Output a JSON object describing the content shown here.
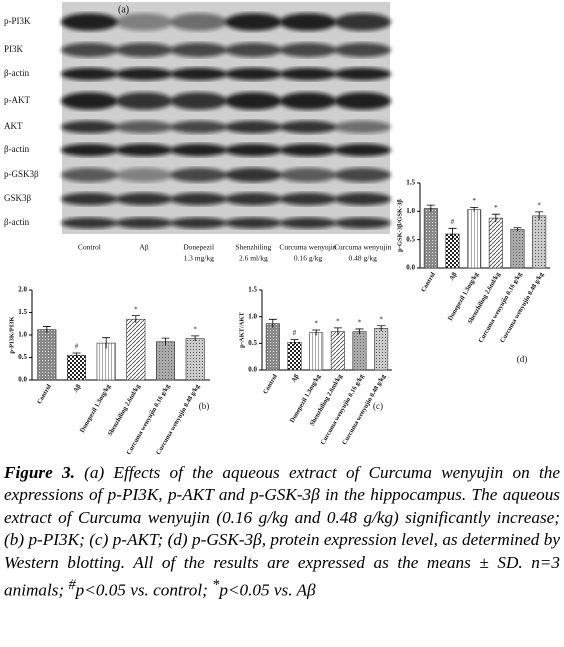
{
  "blot": {
    "panel": "(a)",
    "rows": [
      "p-PI3K",
      "PI3K",
      "β-actin",
      "p-AKT",
      "AKT",
      "β-actin",
      "p-GSK3β",
      "GSK3β",
      "β-actin"
    ],
    "columns": [
      {
        "name": "Control"
      },
      {
        "name": "Aβ"
      },
      {
        "name": "Donepezil",
        "dose": "1.3 mg/kg"
      },
      {
        "name": "Shenzhiling",
        "dose": "2.6 ml/kg"
      },
      {
        "name": "Curcuma wenyujin",
        "dose": "0.16 g/kg"
      },
      {
        "name": "Curcuma wenyujin",
        "dose": "0.48 g/kg"
      }
    ]
  },
  "chart_data": [
    {
      "type": "bar",
      "panel": "(b)",
      "y_label": "p-PI3K/PI3K",
      "categories": [
        "Control",
        "Aβ",
        "Donepezil 1.3mg/kg",
        "Shenzhiling 2.6ml/kg",
        "Curcuma wenyujin 0.16 g/kg",
        "Curcuma wenyujin 0.48 g/kg"
      ],
      "values": [
        1.12,
        0.55,
        0.82,
        1.35,
        0.85,
        0.92
      ],
      "errors": [
        0.07,
        0.05,
        0.12,
        0.08,
        0.08,
        0.06
      ],
      "significance": [
        null,
        "#",
        null,
        "*",
        null,
        "*"
      ],
      "ylim": [
        0,
        2
      ],
      "yticks": [
        {
          "value": 0,
          "label": "0.0"
        },
        0.5,
        {
          "value": 1,
          "label": "1.0"
        },
        1.5,
        {
          "value": 2,
          "label": "2.0"
        }
      ]
    },
    {
      "type": "bar",
      "panel": "(c)",
      "y_label": "p-AKT/AKT",
      "categories": [
        "Control",
        "Aβ",
        "Donepezil 1.3mg/kg",
        "Shenzhiling 2.6ml/kg",
        "Curcuma wenyujin 0.16 g/kg",
        "Curcuma wenyujin 0.48 g/kg"
      ],
      "values": [
        0.87,
        0.52,
        0.7,
        0.72,
        0.72,
        0.78
      ],
      "errors": [
        0.08,
        0.05,
        0.05,
        0.07,
        0.05,
        0.05
      ],
      "significance": [
        null,
        "#",
        "*",
        "*",
        "*",
        "*"
      ],
      "ylim": [
        0,
        1.5
      ],
      "yticks": [
        {
          "value": 0,
          "label": "0.0"
        },
        0.5,
        {
          "value": 1,
          "label": "1.0"
        },
        1.5
      ]
    },
    {
      "type": "bar",
      "panel": "(d)",
      "y_label": "p-GSK-3β/GSK-3β",
      "categories": [
        "Control",
        "Aβ",
        "Donepezil 1.3mg/kg",
        "Shenzhiling 2.6ml/kg",
        "Curcuma wenyujin 0.16 g/kg",
        "Curcuma wenyujin 0.48 g/kg"
      ],
      "values": [
        1.05,
        0.6,
        1.03,
        0.88,
        0.68,
        0.92
      ],
      "errors": [
        0.06,
        0.1,
        0.04,
        0.07,
        0.03,
        0.07
      ],
      "significance": [
        null,
        "#",
        "*",
        "*",
        null,
        "*"
      ],
      "ylim": [
        0,
        1.5
      ],
      "yticks": [
        {
          "value": 0,
          "label": "0.0"
        },
        0.5,
        {
          "value": 1,
          "label": "1.0"
        },
        1.5
      ]
    }
  ],
  "caption": {
    "label": "Figure 3.",
    "segments": [
      " (a) Effects of the aqueous extract of Curcuma wenyujin on the expressions of p-PI3K, p-AKT and p-GSK-3β in the hippocampus. The aqueous extract of Curcuma wenyujin (0.16 g/kg and 0.48 g/kg) significantly increase; (b) p-PI3K; (c) p-AKT; (d) p-GSK-3β, protein expression level, as determined by Western blotting. All of the results are expressed as the means ± SD. n=3 animals; ",
      "#",
      "p<0.05 vs. control; ",
      "*",
      "p<0.05 vs. Aβ"
    ]
  }
}
